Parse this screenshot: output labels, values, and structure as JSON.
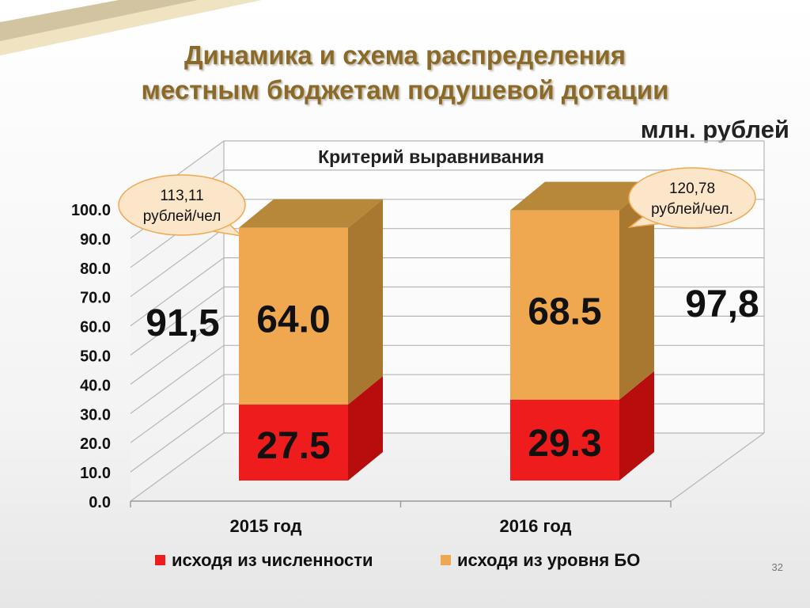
{
  "slide": {
    "title_line1": "Динамика и схема распределения",
    "title_line2": "местным бюджетам  подушевой дотации",
    "units": "млн. рублей",
    "page_number": "32"
  },
  "chart_data": {
    "type": "bar",
    "stacked": true,
    "title": "Критерий выравнивания",
    "categories": [
      "2015 год",
      "2016 год"
    ],
    "series": [
      {
        "name": "исходя из численности",
        "values": [
          27.5,
          29.3
        ],
        "labels": [
          "27.5",
          "29.3"
        ],
        "color": "#ee1c1c",
        "side_color": "#b80d0d"
      },
      {
        "name": "исходя из уровня БО",
        "values": [
          64.0,
          68.5
        ],
        "labels": [
          "64.0",
          "68.5"
        ],
        "color": "#f0a850",
        "side_color": "#a87830",
        "top_color": "#b8883a"
      }
    ],
    "totals": [
      "91,5",
      "97,8"
    ],
    "callouts": [
      {
        "line1": "113,11",
        "line2": "рублей/чел"
      },
      {
        "line1": "120,78",
        "line2": "рублей/чел."
      }
    ],
    "y_ticks": [
      "0.0",
      "10.0",
      "20.0",
      "30.0",
      "40.0",
      "50.0",
      "60.0",
      "70.0",
      "80.0",
      "90.0",
      "100.0"
    ],
    "ylim": [
      0,
      100
    ],
    "grid": true,
    "legend_position": "bottom"
  }
}
